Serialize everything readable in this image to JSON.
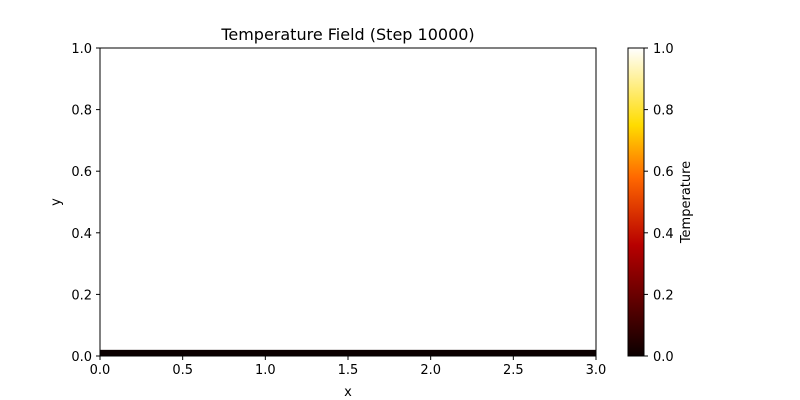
{
  "chart_data": {
    "type": "heatmap",
    "title": "Temperature Field (Step 10000)",
    "xlabel": "x",
    "ylabel": "y",
    "xlim": [
      0.0,
      3.0
    ],
    "ylim": [
      0.0,
      1.0
    ],
    "xticks": [
      "0.0",
      "0.5",
      "1.0",
      "1.5",
      "2.0",
      "2.5",
      "3.0"
    ],
    "yticks": [
      "0.0",
      "0.2",
      "0.4",
      "0.6",
      "0.8",
      "1.0"
    ],
    "grid": false,
    "field": {
      "description_band": {
        "y_range": [
          0.0,
          0.02
        ],
        "value": 0.0
      },
      "background_value": 1.0
    },
    "colorbar": {
      "label": "Temperature",
      "colormap": "hot",
      "range": [
        0.0,
        1.0
      ],
      "ticks": [
        "0.0",
        "0.2",
        "0.4",
        "0.6",
        "0.8",
        "1.0"
      ],
      "colors": [
        "#0b0000",
        "#b70000",
        "#ff6800",
        "#ffdc00",
        "#ffffff"
      ]
    }
  }
}
